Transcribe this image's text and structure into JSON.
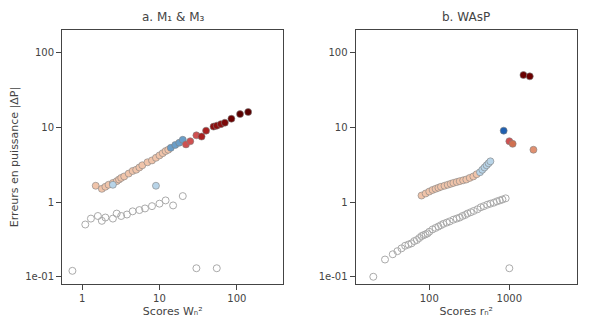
{
  "chart_data": [
    {
      "type": "scatter",
      "title": "a. M₁ & M₃",
      "xlabel": "Scores Wₙ²",
      "ylabel": "Erreurs en puissance |ΔP|",
      "log": true,
      "grid": false,
      "xlim": [
        0.55,
        400
      ],
      "ylim": [
        0.08,
        200
      ],
      "xticks": [
        1,
        10,
        100
      ],
      "yticks": [
        {
          "value": 0.1,
          "label": "1e-01"
        },
        1,
        10,
        100
      ],
      "series": [
        {
          "marker": "circle-open",
          "color": "#aaaaaa",
          "x": [
            0.75,
            1.1,
            1.3,
            1.6,
            1.8,
            2.0,
            2.5,
            2.8,
            3.2,
            3.8,
            4.5,
            5.5,
            6.5,
            8.0,
            10.0,
            12.0,
            15.0,
            20.0,
            30.0,
            55.0
          ],
          "values": [
            0.12,
            0.5,
            0.6,
            0.65,
            0.56,
            0.62,
            0.6,
            0.7,
            0.65,
            0.68,
            0.75,
            0.78,
            0.82,
            0.88,
            0.95,
            1.05,
            0.9,
            1.2,
            0.13,
            0.13
          ]
        },
        {
          "marker": "circle",
          "x": [
            1.5,
            1.8,
            2.0,
            2.2,
            2.5,
            2.8,
            3.0,
            3.2,
            3.5,
            4.0,
            4.5,
            5.0,
            5.5,
            6.0,
            7.0,
            8.0,
            9.0,
            10.0,
            11.0,
            12.0,
            13.0,
            2.5,
            9.0,
            14.0,
            16.0,
            18.0,
            20.0,
            22.0,
            25.0,
            30.0,
            35.0,
            40.0,
            50.0,
            55.0,
            62.0,
            70.0,
            85.0,
            110.0,
            140.0
          ],
          "values": [
            1.65,
            1.5,
            1.6,
            1.7,
            1.8,
            1.9,
            2.0,
            2.1,
            2.2,
            2.4,
            2.6,
            2.7,
            2.9,
            3.1,
            3.4,
            3.6,
            3.9,
            4.2,
            4.5,
            4.8,
            5.0,
            1.7,
            1.65,
            5.3,
            5.8,
            6.2,
            6.8,
            5.9,
            6.5,
            7.8,
            7.5,
            9.0,
            10.2,
            10.5,
            11.0,
            11.5,
            13.0,
            15.0,
            16.0
          ],
          "colors": [
            "#f0c4aa",
            "#f0c4aa",
            "#f0c4aa",
            "#f0c4aa",
            "#f0c4aa",
            "#f0c4aa",
            "#f0c4aa",
            "#f0c4aa",
            "#f0c4aa",
            "#f0c4aa",
            "#f0c4aa",
            "#f0c4aa",
            "#f0c4aa",
            "#f0c4aa",
            "#f0c4aa",
            "#f0c4aa",
            "#f0c4aa",
            "#f0c4aa",
            "#f0c4aa",
            "#f0c4aa",
            "#f0c4aa",
            "#b8d4e8",
            "#b8d4e8",
            "#6a9ec8",
            "#6a9ec8",
            "#6a9ec8",
            "#6a9ec8",
            "#d05050",
            "#d05050",
            "#d05050",
            "#a82020",
            "#a82020",
            "#8b1010",
            "#8b1010",
            "#8b1010",
            "#7a0808",
            "#6b0000",
            "#5a0000",
            "#5a0000"
          ]
        }
      ]
    },
    {
      "type": "scatter",
      "title": "b. WAsP",
      "xlabel": "Scores rₙ²",
      "log": true,
      "grid": false,
      "xlim": [
        12,
        7000
      ],
      "ylim": [
        0.08,
        200
      ],
      "xticks": [
        100,
        1000
      ],
      "yticks": [
        {
          "value": 0.1,
          "label": "1e-01"
        },
        1,
        10,
        100
      ],
      "series": [
        {
          "marker": "circle-open",
          "color": "#aaaaaa",
          "x": [
            20,
            28,
            35,
            40,
            45,
            50,
            55,
            60,
            65,
            70,
            75,
            80,
            85,
            90,
            95,
            100,
            110,
            120,
            130,
            140,
            150,
            165,
            180,
            200,
            220,
            240,
            260,
            280,
            300,
            330,
            360,
            400,
            440,
            480,
            530,
            580,
            640,
            700,
            760,
            820,
            900,
            1000
          ],
          "values": [
            0.1,
            0.17,
            0.2,
            0.22,
            0.24,
            0.26,
            0.27,
            0.28,
            0.3,
            0.31,
            0.33,
            0.35,
            0.36,
            0.37,
            0.38,
            0.4,
            0.43,
            0.45,
            0.47,
            0.49,
            0.51,
            0.53,
            0.55,
            0.58,
            0.6,
            0.62,
            0.65,
            0.67,
            0.7,
            0.73,
            0.76,
            0.8,
            0.85,
            0.88,
            0.92,
            0.95,
            0.98,
            1.02,
            1.05,
            1.08,
            1.12,
            0.13
          ]
        },
        {
          "marker": "circle",
          "x": [
            80,
            90,
            100,
            110,
            120,
            130,
            140,
            155,
            170,
            185,
            200,
            220,
            240,
            265,
            290,
            320,
            355,
            390,
            430,
            460,
            490,
            520,
            550,
            580,
            850,
            1000,
            1100,
            2000,
            1500,
            1800
          ],
          "values": [
            1.22,
            1.3,
            1.38,
            1.45,
            1.5,
            1.55,
            1.6,
            1.65,
            1.7,
            1.75,
            1.8,
            1.85,
            1.9,
            1.95,
            2.0,
            2.1,
            2.2,
            2.35,
            2.5,
            2.7,
            2.9,
            3.1,
            3.3,
            3.5,
            9.0,
            6.5,
            6.0,
            5.0,
            50,
            48
          ],
          "colors": [
            "#f0c4aa",
            "#f0c4aa",
            "#f0c4aa",
            "#f0c4aa",
            "#f0c4aa",
            "#f0c4aa",
            "#f0c4aa",
            "#f0c4aa",
            "#f0c4aa",
            "#f0c4aa",
            "#f0c4aa",
            "#f0c4aa",
            "#f0c4aa",
            "#f0c4aa",
            "#f0c4aa",
            "#f0c4aa",
            "#f0c4aa",
            "#f0c4aa",
            "#b8d4e8",
            "#b8d4e8",
            "#b8d4e8",
            "#b8d4e8",
            "#b8d4e8",
            "#b8d4e8",
            "#2060b0",
            "#d05050",
            "#d07050",
            "#e09070",
            "#6b0000",
            "#6b0000"
          ]
        }
      ]
    }
  ]
}
